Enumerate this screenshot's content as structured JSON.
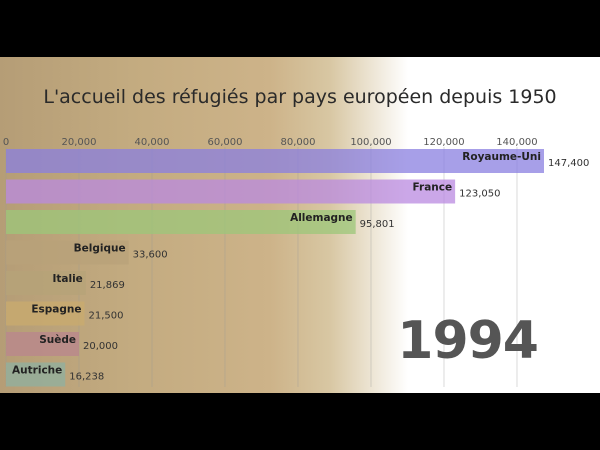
{
  "chart_data": {
    "type": "bar",
    "orientation": "horizontal",
    "title": "L'accueil des réfugiés par pays européen depuis 1950",
    "year_label": "1994",
    "categories": [
      "Royaume-Uni",
      "France",
      "Allemagne",
      "Belgique",
      "Italie",
      "Espagne",
      "Suède",
      "Autriche"
    ],
    "values": [
      147400,
      123050,
      95801,
      33600,
      21869,
      21500,
      20000,
      16238
    ],
    "value_labels": [
      "147,400",
      "123,050",
      "95,801",
      "33,600",
      "21,869",
      "21,500",
      "20,000",
      "16,238"
    ],
    "colors": [
      "#8a7fe0",
      "#b98ae0",
      "#9cc77a",
      "#b8a27a",
      "#b6a378",
      "#c9ab6e",
      "#b9868e",
      "#8fb0a0"
    ],
    "xlim": [
      0,
      147400
    ],
    "xticks": [
      0,
      20000,
      40000,
      60000,
      80000,
      100000,
      120000,
      140000
    ],
    "xtick_labels": [
      "0",
      "20,000",
      "40,000",
      "60,000",
      "80,000",
      "100,000",
      "120,000",
      "140,000"
    ],
    "grid": true,
    "xaxis_position": "top"
  }
}
